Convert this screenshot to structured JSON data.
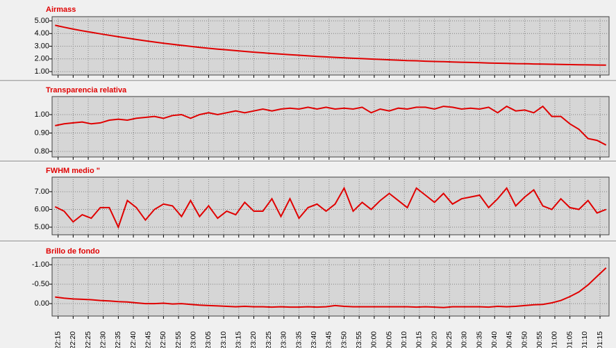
{
  "chart_data": [
    {
      "type": "line",
      "title": "Airmass",
      "color": "#e00000",
      "grid": true,
      "xlim": [
        "22:13",
        "01:18"
      ],
      "x": [
        "22:14",
        "22:17",
        "22:20",
        "22:23",
        "22:26",
        "22:29",
        "22:32",
        "22:35",
        "22:38",
        "22:41",
        "22:44",
        "22:47",
        "22:50",
        "22:53",
        "22:56",
        "22:59",
        "23:02",
        "23:05",
        "23:08",
        "23:11",
        "23:14",
        "23:17",
        "23:20",
        "23:23",
        "23:26",
        "23:29",
        "23:32",
        "23:35",
        "23:38",
        "23:41",
        "23:44",
        "23:47",
        "23:50",
        "23:53",
        "23:56",
        "23:59",
        "00:02",
        "00:05",
        "00:08",
        "00:11",
        "00:14",
        "00:17",
        "00:20",
        "00:23",
        "00:26",
        "00:29",
        "00:32",
        "00:35",
        "00:38",
        "00:41",
        "00:44",
        "00:47",
        "00:50",
        "00:53",
        "00:56",
        "00:59",
        "01:02",
        "01:05",
        "01:08",
        "01:11",
        "01:14",
        "01:17"
      ],
      "values": [
        4.65,
        4.5,
        4.35,
        4.22,
        4.1,
        3.98,
        3.86,
        3.75,
        3.64,
        3.53,
        3.43,
        3.33,
        3.24,
        3.15,
        3.07,
        2.99,
        2.91,
        2.84,
        2.77,
        2.71,
        2.65,
        2.59,
        2.53,
        2.48,
        2.43,
        2.38,
        2.33,
        2.29,
        2.24,
        2.2,
        2.16,
        2.12,
        2.09,
        2.05,
        2.02,
        1.99,
        1.96,
        1.93,
        1.9,
        1.87,
        1.85,
        1.82,
        1.8,
        1.78,
        1.76,
        1.74,
        1.72,
        1.7,
        1.68,
        1.66,
        1.65,
        1.63,
        1.62,
        1.6,
        1.59,
        1.58,
        1.56,
        1.55,
        1.54,
        1.53,
        1.52,
        1.51
      ],
      "ylim": [
        0.73,
        5.33
      ],
      "yticks": [
        {
          "value": 1,
          "label": "1.00"
        },
        {
          "value": 2,
          "label": "2.00"
        },
        {
          "value": 3,
          "label": "3.00"
        },
        {
          "value": 4,
          "label": "4.00"
        },
        {
          "value": 5,
          "label": "5.00"
        }
      ]
    },
    {
      "type": "line",
      "title": "Transparencia relativa",
      "color": "#e00000",
      "grid": true,
      "xlim": [
        "22:13",
        "01:18"
      ],
      "x": [
        "22:14",
        "22:17",
        "22:20",
        "22:23",
        "22:26",
        "22:29",
        "22:32",
        "22:35",
        "22:38",
        "22:41",
        "22:44",
        "22:47",
        "22:50",
        "22:53",
        "22:56",
        "22:59",
        "23:02",
        "23:05",
        "23:08",
        "23:11",
        "23:14",
        "23:17",
        "23:20",
        "23:23",
        "23:26",
        "23:29",
        "23:32",
        "23:35",
        "23:38",
        "23:41",
        "23:44",
        "23:47",
        "23:50",
        "23:53",
        "23:56",
        "23:59",
        "00:02",
        "00:05",
        "00:08",
        "00:11",
        "00:14",
        "00:17",
        "00:20",
        "00:23",
        "00:26",
        "00:29",
        "00:32",
        "00:35",
        "00:38",
        "00:41",
        "00:44",
        "00:47",
        "00:50",
        "00:53",
        "00:56",
        "00:59",
        "01:02",
        "01:05",
        "01:08",
        "01:11",
        "01:14",
        "01:17"
      ],
      "values": [
        0.94,
        0.95,
        0.955,
        0.96,
        0.95,
        0.955,
        0.97,
        0.975,
        0.97,
        0.98,
        0.985,
        0.99,
        0.98,
        0.995,
        1.0,
        0.98,
        1.0,
        1.01,
        1.0,
        1.01,
        1.02,
        1.01,
        1.02,
        1.03,
        1.02,
        1.03,
        1.035,
        1.03,
        1.04,
        1.03,
        1.04,
        1.03,
        1.035,
        1.03,
        1.04,
        1.01,
        1.03,
        1.02,
        1.035,
        1.03,
        1.04,
        1.04,
        1.03,
        1.045,
        1.04,
        1.03,
        1.035,
        1.03,
        1.04,
        1.01,
        1.045,
        1.02,
        1.025,
        1.01,
        1.045,
        0.99,
        0.99,
        0.95,
        0.92,
        0.87,
        0.86,
        0.835
      ],
      "ylim": [
        0.77,
        1.098
      ],
      "yticks": [
        {
          "value": 0.8,
          "label": "0.80"
        },
        {
          "value": 0.9,
          "label": "0.90"
        },
        {
          "value": 1,
          "label": "1.00"
        }
      ]
    },
    {
      "type": "line",
      "title": "FWHM medio \"",
      "color": "#e00000",
      "grid": true,
      "xlim": [
        "22:13",
        "01:18"
      ],
      "x": [
        "22:14",
        "22:17",
        "22:20",
        "22:23",
        "22:26",
        "22:29",
        "22:32",
        "22:35",
        "22:38",
        "22:41",
        "22:44",
        "22:47",
        "22:50",
        "22:53",
        "22:56",
        "22:59",
        "23:02",
        "23:05",
        "23:08",
        "23:11",
        "23:14",
        "23:17",
        "23:20",
        "23:23",
        "23:26",
        "23:29",
        "23:32",
        "23:35",
        "23:38",
        "23:41",
        "23:44",
        "23:47",
        "23:50",
        "23:53",
        "23:56",
        "23:59",
        "00:02",
        "00:05",
        "00:08",
        "00:11",
        "00:14",
        "00:17",
        "00:20",
        "00:23",
        "00:26",
        "00:29",
        "00:32",
        "00:35",
        "00:38",
        "00:41",
        "00:44",
        "00:47",
        "00:50",
        "00:53",
        "00:56",
        "00:59",
        "01:02",
        "01:05",
        "01:08",
        "01:11",
        "01:14",
        "01:17"
      ],
      "values": [
        6.15,
        5.9,
        5.3,
        5.7,
        5.5,
        6.1,
        6.1,
        5.0,
        6.5,
        6.1,
        5.4,
        6.0,
        6.3,
        6.2,
        5.6,
        6.5,
        5.6,
        6.2,
        5.5,
        5.9,
        5.7,
        6.4,
        5.9,
        5.9,
        6.6,
        5.6,
        6.6,
        5.5,
        6.1,
        6.3,
        5.9,
        6.3,
        7.2,
        5.9,
        6.4,
        6.0,
        6.5,
        6.9,
        6.5,
        6.1,
        7.2,
        6.8,
        6.4,
        6.9,
        6.3,
        6.6,
        6.7,
        6.8,
        6.1,
        6.6,
        7.2,
        6.2,
        6.7,
        7.1,
        6.2,
        6.0,
        6.6,
        6.1,
        6.0,
        6.5,
        5.8,
        6.0
      ],
      "ylim": [
        4.57,
        7.82
      ],
      "yticks": [
        {
          "value": 5,
          "label": "5.00"
        },
        {
          "value": 6,
          "label": "6.00"
        },
        {
          "value": 7,
          "label": "7.00"
        }
      ]
    },
    {
      "type": "line",
      "title": "Brillo de fondo",
      "color": "#e00000",
      "grid": true,
      "xlim": [
        "22:13",
        "01:18"
      ],
      "x": [
        "22:14",
        "22:17",
        "22:20",
        "22:23",
        "22:26",
        "22:29",
        "22:32",
        "22:35",
        "22:38",
        "22:41",
        "22:44",
        "22:47",
        "22:50",
        "22:53",
        "22:56",
        "22:59",
        "23:02",
        "23:05",
        "23:08",
        "23:11",
        "23:14",
        "23:17",
        "23:20",
        "23:23",
        "23:26",
        "23:29",
        "23:32",
        "23:35",
        "23:38",
        "23:41",
        "23:44",
        "23:47",
        "23:50",
        "23:53",
        "23:56",
        "23:59",
        "00:02",
        "00:05",
        "00:08",
        "00:11",
        "00:14",
        "00:17",
        "00:20",
        "00:23",
        "00:26",
        "00:29",
        "00:32",
        "00:35",
        "00:38",
        "00:41",
        "00:44",
        "00:47",
        "00:50",
        "00:53",
        "00:56",
        "00:59",
        "01:02",
        "01:05",
        "01:08",
        "01:11",
        "01:14",
        "01:17"
      ],
      "values": [
        -0.17,
        -0.14,
        -0.12,
        -0.11,
        -0.1,
        -0.08,
        -0.07,
        -0.05,
        -0.04,
        -0.02,
        0.0,
        0.0,
        -0.01,
        0.01,
        0.0,
        0.02,
        0.04,
        0.05,
        0.06,
        0.07,
        0.08,
        0.07,
        0.08,
        0.08,
        0.09,
        0.08,
        0.09,
        0.09,
        0.08,
        0.09,
        0.08,
        0.05,
        0.07,
        0.08,
        0.08,
        0.08,
        0.08,
        0.08,
        0.08,
        0.08,
        0.09,
        0.08,
        0.09,
        0.1,
        0.08,
        0.08,
        0.08,
        0.08,
        0.09,
        0.07,
        0.08,
        0.07,
        0.05,
        0.03,
        0.02,
        -0.02,
        -0.08,
        -0.18,
        -0.3,
        -0.48,
        -0.7,
        -0.92
      ],
      "ylim": [
        0.32,
        -1.18
      ],
      "yticks": [
        {
          "value": 0,
          "label": "0.00"
        },
        {
          "value": -0.5,
          "label": "-0.50"
        },
        {
          "value": -1,
          "label": "-1.00"
        }
      ],
      "xticks": [
        "22:15",
        "22:20",
        "22:25",
        "22:30",
        "22:35",
        "22:40",
        "22:45",
        "22:50",
        "22:55",
        "23:00",
        "23:05",
        "23:10",
        "23:15",
        "23:20",
        "23:25",
        "23:30",
        "23:35",
        "23:40",
        "23:45",
        "23:50",
        "23:55",
        "00:00",
        "00:05",
        "00:10",
        "00:15",
        "00:20",
        "00:25",
        "00:30",
        "00:35",
        "00:40",
        "00:45",
        "00:50",
        "00:55",
        "01:00",
        "01:05",
        "01:10",
        "01:15"
      ]
    }
  ]
}
